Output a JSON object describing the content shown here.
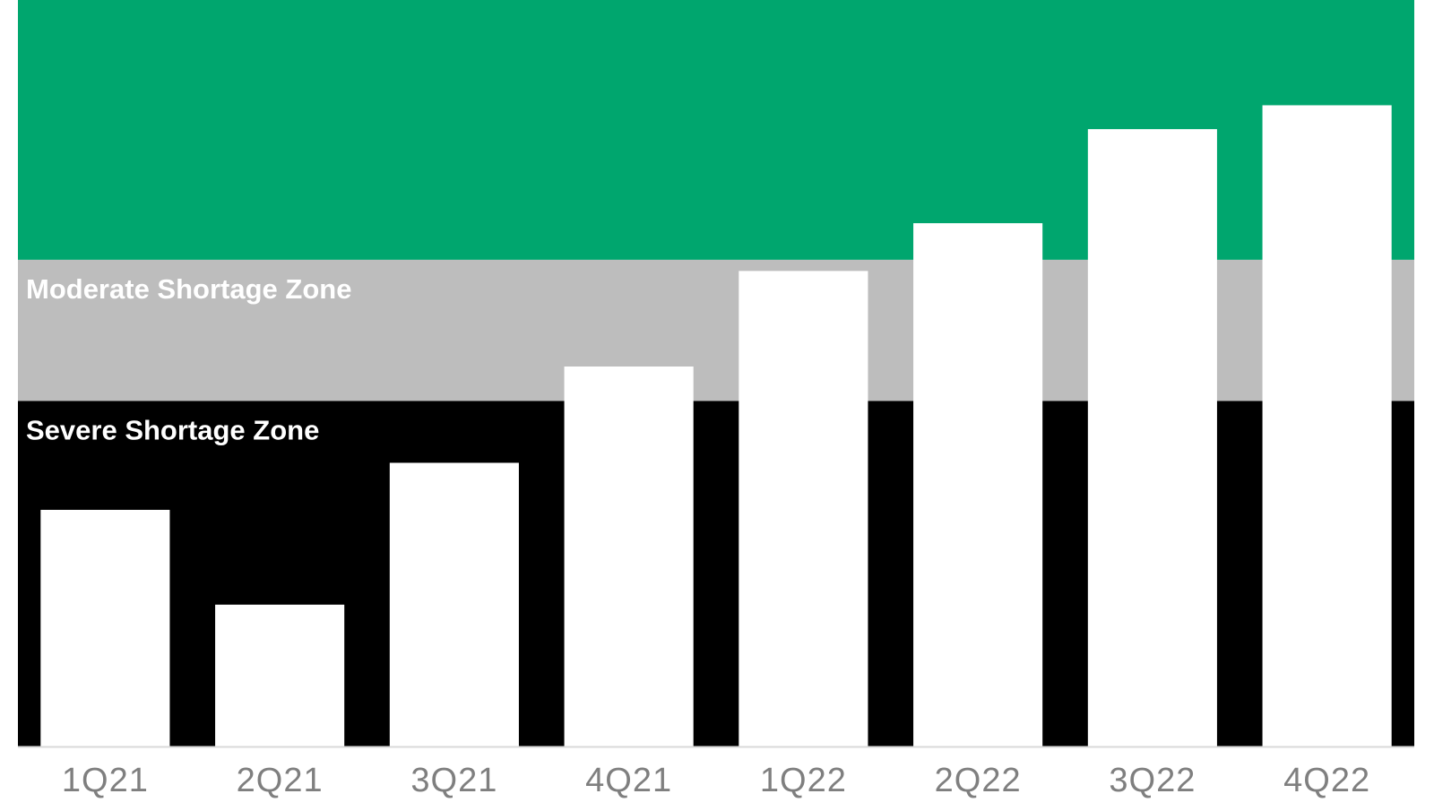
{
  "chart_data": {
    "type": "bar",
    "categories": [
      "1Q21",
      "2Q21",
      "3Q21",
      "4Q21",
      "1Q22",
      "2Q22",
      "3Q22",
      "4Q22"
    ],
    "values": [
      31.7,
      19.0,
      38.0,
      50.9,
      63.7,
      70.1,
      82.7,
      85.9
    ],
    "color": "#ffffff",
    "ylim": [
      0,
      100
    ],
    "zones": [
      {
        "name": "Severe Shortage Zone",
        "from": 0,
        "to": 46.3,
        "color": "#000000"
      },
      {
        "name": "Moderate Shortage Zone",
        "from": 46.3,
        "to": 65.2,
        "color": "#bdbdbd"
      },
      {
        "from": 65.2,
        "to": 100,
        "color": "#00a66e"
      }
    ]
  }
}
